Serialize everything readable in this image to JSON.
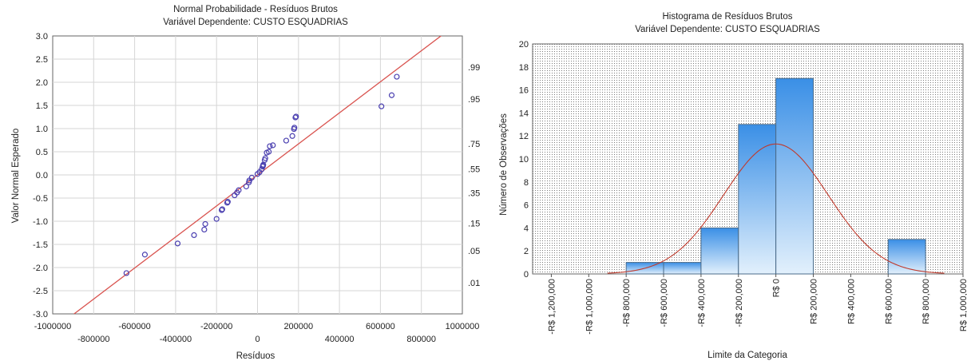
{
  "colors": {
    "grid": "#d6d6d6",
    "marker": "#4a3fb0",
    "fit_line": "#d9534f",
    "bar_top": "#3a8fe6",
    "bar_bottom": "#e2f0fc",
    "bar_edge": "#4a6b8a",
    "density": "#c0392b",
    "dot_grid": "#7a7a7a"
  },
  "chart_data": [
    {
      "type": "scatter",
      "title": "Normal Probabilidade - Resíduos Brutos",
      "subtitle": "Variável Dependente: CUSTO ESQUADRIAS",
      "xlabel": "Resíduos",
      "ylabel": "Valor Normal Esperado",
      "xlim": [
        -1000000,
        1000000
      ],
      "ylim": [
        -3.0,
        3.0
      ],
      "x_ticks_upper": [
        "-1000000",
        "-600000",
        "-200000",
        "200000",
        "600000",
        "1000000"
      ],
      "x_ticks_lower": [
        "-800000",
        "-400000",
        "0",
        "400000",
        "800000"
      ],
      "y_ticks": [
        "3.0",
        "2.5",
        "2.0",
        "1.5",
        "1.0",
        "0.5",
        "0.0",
        "-0.5",
        "-1.0",
        "-1.5",
        "-2.0",
        "-2.5",
        "-3.0"
      ],
      "right_axis": [
        {
          "label": ".99",
          "z": 2.33
        },
        {
          "label": ".95",
          "z": 1.64
        },
        {
          "label": ".75",
          "z": 0.67
        },
        {
          "label": ".55",
          "z": 0.13
        },
        {
          "label": ".35",
          "z": -0.39
        },
        {
          "label": ".15",
          "z": -1.04
        },
        {
          "label": ".05",
          "z": -1.64
        },
        {
          "label": ".01",
          "z": -2.33
        }
      ],
      "fit_line": [
        [
          -1000000,
          -3.35
        ],
        [
          1000000,
          3.35
        ]
      ],
      "points": [
        [
          -640000,
          -2.12
        ],
        [
          -550000,
          -1.72
        ],
        [
          -390000,
          -1.48
        ],
        [
          -310000,
          -1.3
        ],
        [
          -260000,
          -1.18
        ],
        [
          -255000,
          -1.06
        ],
        [
          -200000,
          -0.95
        ],
        [
          -175000,
          -0.76
        ],
        [
          -172000,
          -0.74
        ],
        [
          -148000,
          -0.6
        ],
        [
          -145000,
          -0.58
        ],
        [
          -112000,
          -0.44
        ],
        [
          -100000,
          -0.38
        ],
        [
          -92000,
          -0.33
        ],
        [
          -55000,
          -0.25
        ],
        [
          -42000,
          -0.16
        ],
        [
          -40000,
          -0.12
        ],
        [
          -28000,
          -0.06
        ],
        [
          0,
          0.02
        ],
        [
          10000,
          0.06
        ],
        [
          20000,
          0.12
        ],
        [
          25000,
          0.18
        ],
        [
          27000,
          0.2
        ],
        [
          28000,
          0.22
        ],
        [
          35000,
          0.32
        ],
        [
          38000,
          0.36
        ],
        [
          45000,
          0.48
        ],
        [
          55000,
          0.5
        ],
        [
          60000,
          0.62
        ],
        [
          75000,
          0.64
        ],
        [
          140000,
          0.74
        ],
        [
          170000,
          0.84
        ],
        [
          178000,
          0.99
        ],
        [
          180000,
          1.02
        ],
        [
          185000,
          1.24
        ],
        [
          188000,
          1.26
        ],
        [
          605000,
          1.48
        ],
        [
          655000,
          1.72
        ],
        [
          680000,
          2.12
        ]
      ]
    },
    {
      "type": "bar",
      "title": "Histograma de Resíduos Brutos",
      "subtitle": "Variável Dependente: CUSTO ESQUADRIAS",
      "xlabel": "Limite da Categoria",
      "ylabel": "Número de Observações",
      "xlim": [
        -1300000,
        1000000
      ],
      "ylim": [
        0,
        20
      ],
      "y_ticks": [
        "0",
        "2",
        "4",
        "6",
        "8",
        "10",
        "12",
        "14",
        "16",
        "18",
        "20"
      ],
      "x_ticks": [
        {
          "value": -1200000,
          "label": "-R$ 1,200,000"
        },
        {
          "value": -1000000,
          "label": "-R$ 1,000,000"
        },
        {
          "value": -800000,
          "label": "-R$ 800,000"
        },
        {
          "value": -600000,
          "label": "-R$ 600,000"
        },
        {
          "value": -400000,
          "label": "-R$ 400,000"
        },
        {
          "value": -200000,
          "label": "-R$ 200,000"
        },
        {
          "value": 0,
          "label": "R$ 0"
        },
        {
          "value": 200000,
          "label": "R$ 200,000"
        },
        {
          "value": 400000,
          "label": "R$ 400,000"
        },
        {
          "value": 600000,
          "label": "R$ 600,000"
        },
        {
          "value": 800000,
          "label": "R$ 800,000"
        },
        {
          "value": 1000000,
          "label": "R$ 1,000,000"
        }
      ],
      "bins": [
        {
          "from": -800000,
          "to": -600000,
          "count": 1
        },
        {
          "from": -600000,
          "to": -400000,
          "count": 1
        },
        {
          "from": -400000,
          "to": -200000,
          "count": 4
        },
        {
          "from": -200000,
          "to": 0,
          "count": 13
        },
        {
          "from": 0,
          "to": 200000,
          "count": 17
        },
        {
          "from": 600000,
          "to": 800000,
          "count": 3
        }
      ],
      "normal_curve": {
        "mean": 0,
        "sd": 280000,
        "peak": 11.3
      }
    }
  ]
}
